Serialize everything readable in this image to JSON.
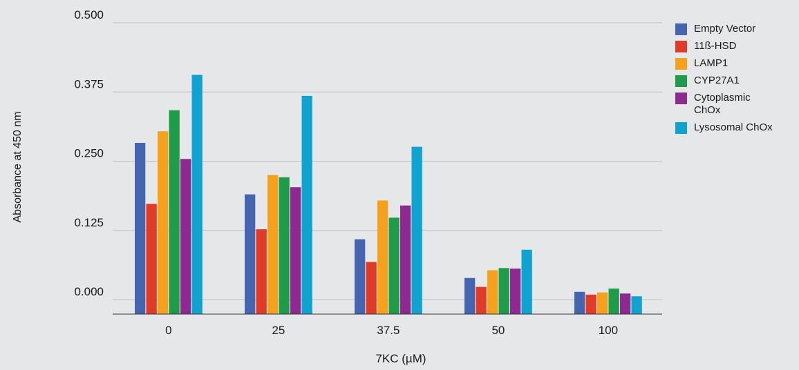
{
  "chart_data": {
    "type": "bar",
    "title": "",
    "xlabel": "7KC (µM)",
    "ylabel": "Absorbance at 450 nm",
    "categories": [
      "0",
      "25",
      "37.5",
      "50",
      "100"
    ],
    "y_ticks": [
      "0.000",
      "0.125",
      "0.250",
      "0.375",
      "0.500"
    ],
    "ylim": [
      -0.02,
      0.5
    ],
    "grid": true,
    "legend_position": "right",
    "series": [
      {
        "name": "Empty Vector",
        "color": "#4565b0",
        "values": [
          0.283,
          0.19,
          0.109,
          0.039,
          0.014
        ]
      },
      {
        "name": "11ß-HSD",
        "color": "#e03b28",
        "values": [
          0.173,
          0.127,
          0.068,
          0.023,
          0.009
        ]
      },
      {
        "name": "LAMP1",
        "color": "#f6a11e",
        "values": [
          0.304,
          0.225,
          0.179,
          0.053,
          0.013
        ]
      },
      {
        "name": "CYP27A1",
        "color": "#1f9c4a",
        "values": [
          0.342,
          0.221,
          0.148,
          0.057,
          0.02
        ]
      },
      {
        "name": "Cytoplasmic ChOx",
        "color": "#8e2a8f",
        "values": [
          0.254,
          0.203,
          0.17,
          0.056,
          0.011
        ]
      },
      {
        "name": "Lysosomal ChOx",
        "color": "#11a3cf",
        "values": [
          0.406,
          0.368,
          0.276,
          0.09,
          0.006
        ]
      }
    ]
  }
}
